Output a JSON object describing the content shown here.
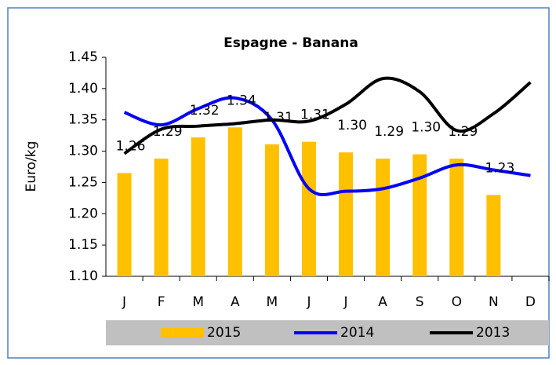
{
  "chart_data": {
    "type": "combo",
    "title": "Espagne - Banana",
    "y_label": "Euro/kg",
    "categories": [
      "J",
      "F",
      "M",
      "A",
      "M",
      "J",
      "J",
      "A",
      "S",
      "O",
      "N",
      "D"
    ],
    "series": [
      {
        "name": "2015",
        "type": "bar",
        "color": "#ffc000",
        "values": [
          1.265,
          1.288,
          1.322,
          1.338,
          1.311,
          1.315,
          1.298,
          1.288,
          1.295,
          1.288,
          1.23,
          null
        ],
        "value_labels": [
          "1.26",
          "1.29",
          "1.32",
          "1.34",
          "1.31",
          "1.31",
          "1.30",
          "1.29",
          "1.30",
          "1.29",
          "1.23",
          null
        ]
      },
      {
        "name": "2014",
        "type": "line",
        "color": "#0000ff",
        "values": [
          1.362,
          1.342,
          1.368,
          1.385,
          1.35,
          1.24,
          1.236,
          1.24,
          1.257,
          1.278,
          1.27,
          1.261
        ]
      },
      {
        "name": "2013",
        "type": "line",
        "color": "#000000",
        "values": [
          1.296,
          1.335,
          1.34,
          1.344,
          1.35,
          1.348,
          1.375,
          1.416,
          1.395,
          1.333,
          1.36,
          1.41
        ]
      }
    ],
    "ylim": [
      1.1,
      1.45
    ],
    "yticks": [
      {
        "value": 1.1,
        "label": "1.10"
      },
      1.15,
      {
        "value": 1.2,
        "label": "1.20"
      },
      1.25,
      {
        "value": 1.3,
        "label": "1.30"
      },
      1.35,
      {
        "value": 1.4,
        "label": "1.40"
      },
      1.45
    ],
    "legend": "bottom"
  }
}
